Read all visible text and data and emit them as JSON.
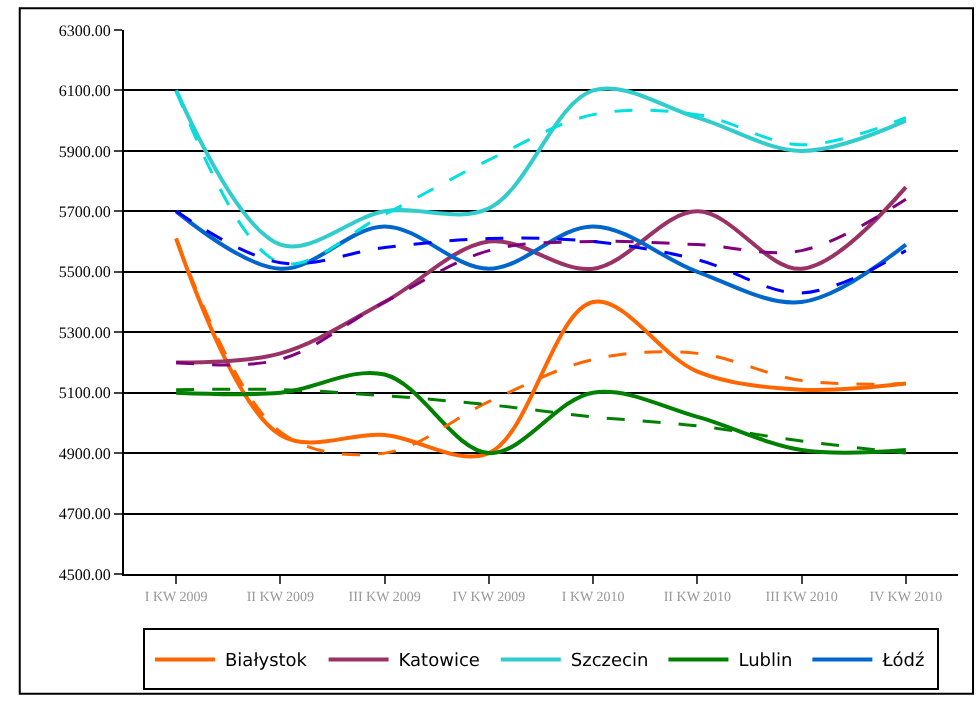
{
  "chart_data": {
    "type": "line",
    "categories": [
      "I KW 2009",
      "II KW 2009",
      "III KW 2009",
      "IV KW 2009",
      "I KW 2010",
      "II KW 2010",
      "III KW 2010",
      "IV KW 2010"
    ],
    "series": [
      {
        "name": "Białystok",
        "color": "#ff6600",
        "values": [
          5610,
          4960,
          4960,
          4900,
          5400,
          5170,
          5110,
          5130
        ]
      },
      {
        "name": "Katowice",
        "color": "#993366",
        "values": [
          5200,
          5230,
          5400,
          5600,
          5510,
          5700,
          5510,
          5780
        ]
      },
      {
        "name": "Szczecin",
        "color": "#33cccc",
        "values": [
          6100,
          5590,
          5700,
          5710,
          6100,
          6010,
          5900,
          6000
        ]
      },
      {
        "name": "Lublin",
        "color": "#008000",
        "values": [
          5100,
          5100,
          5160,
          4900,
          5100,
          5020,
          4910,
          4910
        ]
      },
      {
        "name": "Łódź",
        "color": "#0066cc",
        "values": [
          5700,
          5510,
          5650,
          5510,
          5650,
          5500,
          5400,
          5590
        ]
      },
      {
        "color": "#ff6600",
        "line_style": "dashed",
        "values": [
          5610,
          4970,
          4900,
          5070,
          5210,
          5230,
          5140,
          5130
        ]
      },
      {
        "color": "#800080",
        "line_style": "dashed",
        "values": [
          5200,
          5210,
          5400,
          5570,
          5600,
          5590,
          5570,
          5740
        ]
      },
      {
        "color": "#00e0e0",
        "line_style": "dashed",
        "values": [
          6100,
          5530,
          5690,
          5870,
          6020,
          6020,
          5920,
          6010
        ]
      },
      {
        "color": "#008000",
        "line_style": "dashed",
        "values": [
          5110,
          5110,
          5090,
          5060,
          5020,
          4990,
          4940,
          4900
        ]
      },
      {
        "color": "#0000ff",
        "line_style": "dashed",
        "values": [
          5700,
          5530,
          5580,
          5610,
          5600,
          5540,
          5430,
          5570
        ]
      }
    ],
    "ylim": [
      4500,
      6300
    ],
    "yticks": [
      {
        "value": 4500,
        "label": "4500.00"
      },
      {
        "value": 4700,
        "label": "4700.00"
      },
      {
        "value": 4900,
        "label": "4900.00"
      },
      {
        "value": 5100,
        "label": "5100.00"
      },
      {
        "value": 5300,
        "label": "5300.00"
      },
      {
        "value": 5500,
        "label": "5500.00"
      },
      {
        "value": 5700,
        "label": "5700.00"
      },
      {
        "value": 5900,
        "label": "5900.00"
      },
      {
        "value": 6100,
        "label": "6100.00"
      },
      {
        "value": 6300,
        "label": "6300.00"
      }
    ],
    "grid": "y",
    "legend": "bottom",
    "line_style": "solid",
    "marker": "none"
  }
}
